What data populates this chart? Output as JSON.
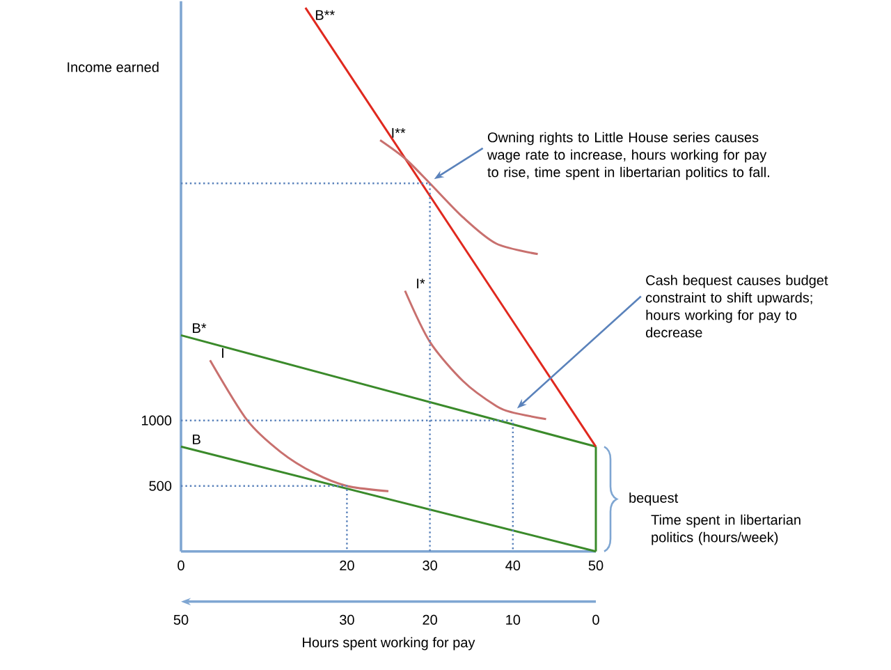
{
  "chart_data": {
    "type": "line",
    "xlabel": "Time spent in libertarian politics (hours/week)",
    "ylabel": "Income earned",
    "x2label": "Hours spent working for pay",
    "xlim": [
      0,
      50
    ],
    "xticks": [
      0,
      20,
      30,
      40,
      50
    ],
    "ylim": [
      0,
      4200
    ],
    "yticks": [
      500,
      1000
    ],
    "x2lim": [
      50,
      0
    ],
    "x2ticks": [
      50,
      30,
      20,
      10,
      0
    ],
    "series": [
      {
        "name": "B",
        "color": "#3a8a2a",
        "x": [
          0,
          50
        ],
        "values": [
          800,
          0
        ]
      },
      {
        "name": "B*",
        "color": "#3a8a2a",
        "x": [
          0,
          50
        ],
        "values": [
          1650,
          800
        ]
      },
      {
        "name": "B**",
        "color": "#e0281e",
        "x": [
          15,
          50
        ],
        "values": [
          4150,
          800
        ]
      },
      {
        "color": "#3a8a2a",
        "x": [
          50,
          50
        ],
        "values": [
          0,
          800
        ]
      },
      {
        "name": "I",
        "color": "#c8706e",
        "x": [
          3.5,
          8,
          12,
          16,
          20,
          25
        ],
        "values": [
          1460,
          1000,
          760,
          600,
          500,
          460
        ]
      },
      {
        "name": "I*",
        "color": "#c8706e",
        "x": [
          27,
          30,
          34,
          38,
          40,
          44
        ],
        "values": [
          1990,
          1600,
          1300,
          1110,
          1060,
          1010
        ]
      },
      {
        "name": "I**",
        "color": "#c8706e",
        "x": [
          24,
          27,
          30,
          34,
          38,
          43
        ],
        "values": [
          3140,
          3000,
          2810,
          2550,
          2350,
          2270
        ]
      },
      {
        "color": "#5a82bb",
        "line_style": "dotted",
        "x": [
          0,
          20,
          20
        ],
        "values": [
          500,
          500,
          0
        ]
      },
      {
        "color": "#5a82bb",
        "line_style": "dotted",
        "x": [
          0,
          40,
          40
        ],
        "values": [
          1000,
          1000,
          0
        ]
      },
      {
        "color": "#5a82bb",
        "line_style": "dotted",
        "x": [
          0,
          30,
          30
        ],
        "values": [
          2810,
          2810,
          0
        ]
      }
    ],
    "annotations": [
      {
        "text": "Owning rights to Little House series causes wage rate to increase, hours working for pay to rise, time spent in libertarian politics to fall.",
        "x": 30,
        "y": 2810
      },
      {
        "text": "Cash bequest causes budget constraint to shift upwards; hours working for pay to decrease",
        "x": 40,
        "y": 1060
      },
      {
        "text": "bequest",
        "x": 50,
        "y": 400
      }
    ]
  }
}
